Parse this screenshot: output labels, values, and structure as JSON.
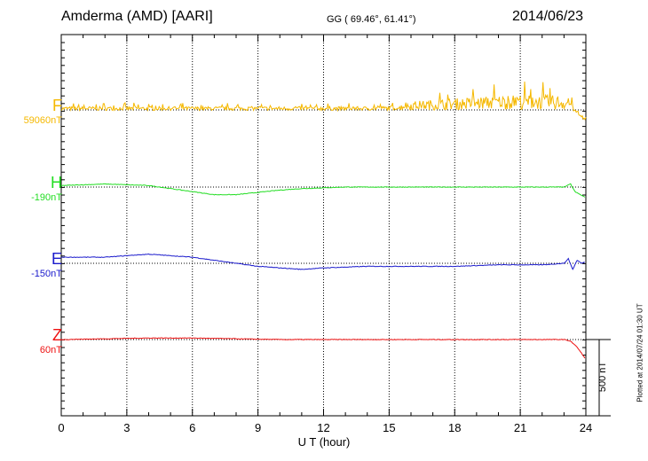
{
  "header": {
    "station": "Amderma (AMD)  [AARI]",
    "coords": "GG ( 69.46°,  61.41°)",
    "date": "2014/06/23"
  },
  "footnote": "Plotted at 2014/07/24 01:30 UT",
  "chart_data": {
    "type": "line",
    "xlabel": "U T (hour)",
    "xlim": [
      0,
      24
    ],
    "xticks": [
      0,
      3,
      6,
      9,
      12,
      15,
      18,
      21,
      24
    ],
    "scale_bar": {
      "value": 500,
      "label": "500 nT"
    },
    "series": [
      {
        "name": "F",
        "baseline_label": "59060nT",
        "color": "#f5b800",
        "noise": 1,
        "x": [
          0,
          2,
          4,
          6,
          8,
          10,
          12,
          14,
          16,
          18,
          20,
          21,
          22,
          23,
          23.4,
          23.7,
          24
        ],
        "values": [
          0,
          0,
          0,
          0,
          0,
          0,
          0,
          0,
          5,
          10,
          15,
          15,
          15,
          10,
          0,
          -40,
          -70
        ]
      },
      {
        "name": "H",
        "baseline_label": "-190nT",
        "color": "#22dd22",
        "noise": 0,
        "x": [
          0,
          2,
          4,
          6,
          7,
          8,
          9,
          10,
          11,
          12,
          13,
          14,
          16,
          18,
          20,
          22,
          23,
          23.3,
          23.5,
          24
        ],
        "values": [
          10,
          20,
          10,
          -30,
          -50,
          -50,
          -35,
          -20,
          -10,
          -5,
          0,
          0,
          0,
          0,
          0,
          0,
          0,
          20,
          -30,
          -70
        ]
      },
      {
        "name": "E",
        "baseline_label": "-150nT",
        "color": "#1a1acc",
        "noise": 0,
        "x": [
          0,
          2,
          3,
          4,
          5,
          6,
          7,
          8,
          9,
          10,
          11,
          12,
          14,
          16,
          18,
          20,
          22,
          23,
          23.2,
          23.4,
          23.6,
          23.8,
          24
        ],
        "values": [
          40,
          40,
          50,
          60,
          50,
          40,
          20,
          0,
          -20,
          -30,
          -40,
          -30,
          -20,
          -20,
          -20,
          -10,
          -10,
          0,
          30,
          -40,
          20,
          0,
          10
        ]
      },
      {
        "name": "Z",
        "baseline_label": "60nT",
        "color": "#ee1111",
        "noise": 0,
        "x": [
          0,
          2,
          4,
          6,
          8,
          10,
          12,
          14,
          16,
          18,
          20,
          22,
          23,
          23.3,
          23.6,
          24
        ],
        "values": [
          0,
          5,
          10,
          10,
          5,
          0,
          0,
          0,
          0,
          0,
          0,
          0,
          0,
          -10,
          -50,
          -130
        ]
      }
    ]
  }
}
